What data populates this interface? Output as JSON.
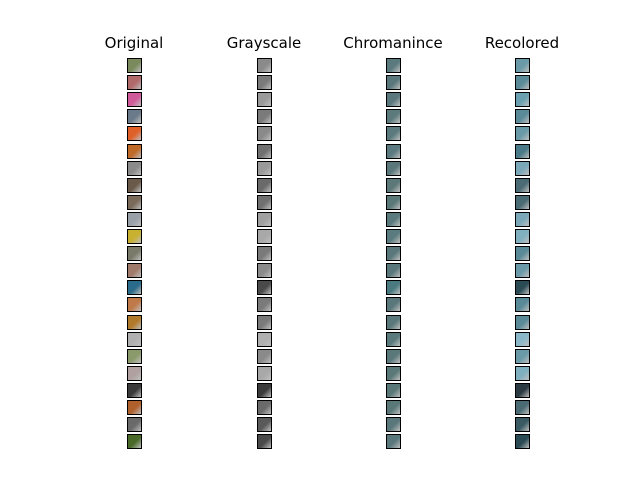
{
  "columns": [
    {
      "title": "Original",
      "tiles": [
        "#7a8a5c",
        "#b06a6a",
        "#d05a9a",
        "#6a7a8a",
        "#e0602a",
        "#c06a2a",
        "#8a8a8a",
        "#6a5a4a",
        "#7a6a5a",
        "#9aa0a8",
        "#c8b030",
        "#7a7a6a",
        "#a07a6a",
        "#2a6a8a",
        "#c07a4a",
        "#b07a2a",
        "#b0b0b0",
        "#8a9a6a",
        "#b0a0a0",
        "#3a3a3a",
        "#b0602a",
        "#6a6a6a",
        "#4a6a2a"
      ]
    },
    {
      "title": "Grayscale",
      "tiles": [
        "#8a8a8a",
        "#7a7a7a",
        "#9a9a9a",
        "#7a7a7a",
        "#8a8a8a",
        "#707070",
        "#9a9a9a",
        "#6a6a6a",
        "#707070",
        "#a0a0a0",
        "#a8a8a8",
        "#7a7a7a",
        "#8a8a8a",
        "#4a4a4a",
        "#7a7a7a",
        "#7a7a7a",
        "#b0b0b0",
        "#8a8a8a",
        "#a8a8a8",
        "#3a3a3a",
        "#6a6a6a",
        "#5a5a5a",
        "#4a4a4a"
      ]
    },
    {
      "title": "Chromanince",
      "tiles": [
        "#5a7a7e",
        "#5a787c",
        "#5a787e",
        "#5c7a7c",
        "#5a7a7e",
        "#5a7a80",
        "#5a787c",
        "#5c7878",
        "#5a7878",
        "#5a7a7e",
        "#5a7c80",
        "#5a787c",
        "#5a787c",
        "#4a7a80",
        "#5a787c",
        "#5a787a",
        "#5a7a7e",
        "#5a787a",
        "#5a7878",
        "#5a7878",
        "#5a7878",
        "#5a787c",
        "#5a787c"
      ]
    },
    {
      "title": "Recolored",
      "tiles": [
        "#6a9aa8",
        "#5a8a98",
        "#6aa0b0",
        "#5a8a98",
        "#6a9aa8",
        "#4a7a88",
        "#7aa8b8",
        "#4a6a74",
        "#4a6a74",
        "#7aa8b8",
        "#80b0c0",
        "#5a8a98",
        "#6a9aa8",
        "#2a4a54",
        "#5a8a98",
        "#5a8a98",
        "#8ab8c8",
        "#6a9aa8",
        "#80b0c0",
        "#2a3a40",
        "#4a6a74",
        "#3a5a64",
        "#2a4a54"
      ]
    }
  ]
}
